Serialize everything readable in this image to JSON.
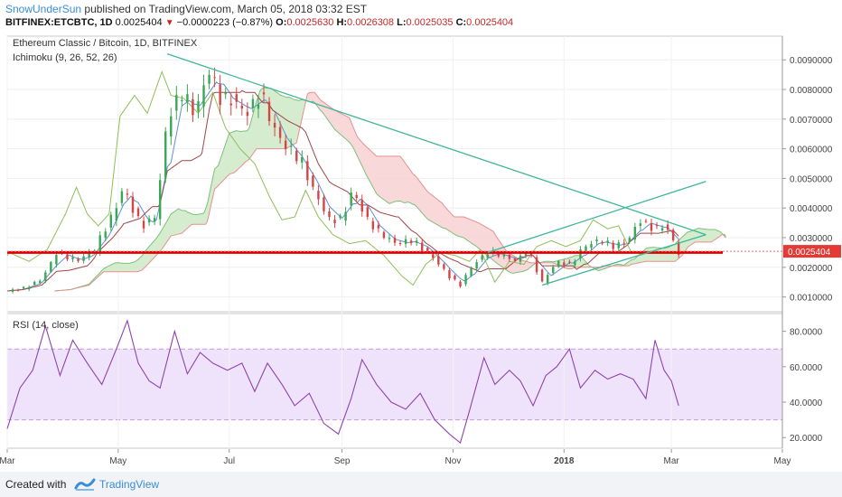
{
  "header": {
    "author": "SnowUnderSun",
    "published_text": "published on TradingView.com, March 05, 2018 03:32 EST",
    "symbol": "BITFINEX:ETCBTC, 1D",
    "last": "0.0025404",
    "change": "−0.0000223 (−0.87%)",
    "ohlc": {
      "o_label": "O:",
      "o": "0.0025630",
      "h_label": "H:",
      "h": "0.0026308",
      "l_label": "L:",
      "l": "0.0025035",
      "c_label": "C:",
      "c": "0.0025404"
    }
  },
  "chart_title": "Ethereum Classic / Bitcoin, 1D, BITFINEX",
  "ichimoku_label": "Ichimoku (9, 26, 52, 26)",
  "rsi_label": "RSI (14, close)",
  "footer": {
    "created_with": "Created with",
    "brand": "TradingView"
  },
  "colors": {
    "up": "#3aa757",
    "down": "#d64545",
    "support": "#e00000",
    "trendline": "#3fb59a",
    "rsi": "#8e44ad",
    "rsi_band": "#efe3fb",
    "cloud_bull": "#cfe9c7",
    "cloud_bear": "#f7d1d1",
    "price_label_bg": "#e53935"
  },
  "chart_data": [
    {
      "type": "candlestick",
      "title": "Ethereum Classic / Bitcoin, 1D, BITFINEX",
      "indicator": "Ichimoku (9, 26, 52, 26)",
      "ylim": [
        0.0005,
        0.0098
      ],
      "y_ticks": [
        "0.0010000",
        "0.0020000",
        "0.0030000",
        "0.0040000",
        "0.0050000",
        "0.0060000",
        "0.0070000",
        "0.0080000",
        "0.0090000"
      ],
      "x_ticks": [
        "Mar",
        "May",
        "Jul",
        "Sep",
        "Nov",
        "2018",
        "Mar",
        "May"
      ],
      "current_price": "0.0025404",
      "support_level": 0.0025,
      "close_path": [
        [
          "2017-03-01",
          0.0012
        ],
        [
          "2017-03-10",
          0.0013
        ],
        [
          "2017-03-20",
          0.0016
        ],
        [
          "2017-03-28",
          0.0025
        ],
        [
          "2017-04-08",
          0.0022
        ],
        [
          "2017-04-18",
          0.0026
        ],
        [
          "2017-04-28",
          0.0038
        ],
        [
          "2017-05-04",
          0.0047
        ],
        [
          "2017-05-10",
          0.0038
        ],
        [
          "2017-05-16",
          0.0034
        ],
        [
          "2017-05-22",
          0.0038
        ],
        [
          "2017-05-28",
          0.0071
        ],
        [
          "2017-06-05",
          0.0078
        ],
        [
          "2017-06-12",
          0.0072
        ],
        [
          "2017-06-20",
          0.0086
        ],
        [
          "2017-06-25",
          0.0078
        ],
        [
          "2017-07-02",
          0.0077
        ],
        [
          "2017-07-10",
          0.0072
        ],
        [
          "2017-07-18",
          0.0079
        ],
        [
          "2017-07-25",
          0.0067
        ],
        [
          "2017-08-02",
          0.006
        ],
        [
          "2017-08-10",
          0.0055
        ],
        [
          "2017-08-18",
          0.0044
        ],
        [
          "2017-08-25",
          0.0036
        ],
        [
          "2017-09-01",
          0.0037
        ],
        [
          "2017-09-07",
          0.0046
        ],
        [
          "2017-09-14",
          0.0037
        ],
        [
          "2017-09-22",
          0.0031
        ],
        [
          "2017-10-01",
          0.0028
        ],
        [
          "2017-10-10",
          0.0029
        ],
        [
          "2017-10-20",
          0.0024
        ],
        [
          "2017-10-30",
          0.0017
        ],
        [
          "2017-11-05",
          0.0014
        ],
        [
          "2017-11-12",
          0.0021
        ],
        [
          "2017-11-20",
          0.0025
        ],
        [
          "2017-11-28",
          0.0024
        ],
        [
          "2017-12-06",
          0.0022
        ],
        [
          "2017-12-12",
          0.0026
        ],
        [
          "2017-12-20",
          0.0015
        ],
        [
          "2017-12-28",
          0.0022
        ],
        [
          "2018-01-05",
          0.0021
        ],
        [
          "2018-01-12",
          0.0027
        ],
        [
          "2018-01-20",
          0.0029
        ],
        [
          "2018-01-28",
          0.0027
        ],
        [
          "2018-02-05",
          0.0029
        ],
        [
          "2018-02-12",
          0.0036
        ],
        [
          "2018-02-20",
          0.0033
        ],
        [
          "2018-02-26",
          0.0034
        ],
        [
          "2018-03-05",
          0.0025
        ]
      ],
      "descending_trendline": [
        [
          "2017-05-28",
          0.0092
        ],
        [
          "2018-03-20",
          0.0031
        ]
      ],
      "rising_channel_lower": [
        [
          "2017-12-20",
          0.0014
        ],
        [
          "2018-03-20",
          0.0031
        ]
      ],
      "rising_channel_upper": [
        [
          "2017-11-20",
          0.0025
        ],
        [
          "2018-03-20",
          0.0049
        ]
      ]
    },
    {
      "type": "line",
      "title": "RSI (14, close)",
      "ylim": [
        14,
        90
      ],
      "y_ticks": [
        "20.0000",
        "40.0000",
        "60.0000",
        "80.0000"
      ],
      "band": [
        30,
        70
      ],
      "series": [
        {
          "name": "RSI (14, close)",
          "values": [
            [
              "2017-03-01",
              25
            ],
            [
              "2017-03-08",
              48
            ],
            [
              "2017-03-15",
              58
            ],
            [
              "2017-03-22",
              83
            ],
            [
              "2017-03-30",
              55
            ],
            [
              "2017-04-06",
              75
            ],
            [
              "2017-04-14",
              62
            ],
            [
              "2017-04-22",
              50
            ],
            [
              "2017-04-30",
              70
            ],
            [
              "2017-05-06",
              86
            ],
            [
              "2017-05-12",
              62
            ],
            [
              "2017-05-18",
              52
            ],
            [
              "2017-05-24",
              48
            ],
            [
              "2017-06-01",
              80
            ],
            [
              "2017-06-08",
              56
            ],
            [
              "2017-06-15",
              68
            ],
            [
              "2017-06-22",
              62
            ],
            [
              "2017-06-30",
              58
            ],
            [
              "2017-07-08",
              62
            ],
            [
              "2017-07-15",
              46
            ],
            [
              "2017-07-22",
              62
            ],
            [
              "2017-07-30",
              50
            ],
            [
              "2017-08-06",
              38
            ],
            [
              "2017-08-14",
              45
            ],
            [
              "2017-08-22",
              28
            ],
            [
              "2017-08-30",
              22
            ],
            [
              "2017-09-06",
              42
            ],
            [
              "2017-09-12",
              64
            ],
            [
              "2017-09-20",
              50
            ],
            [
              "2017-09-28",
              40
            ],
            [
              "2017-10-06",
              36
            ],
            [
              "2017-10-14",
              45
            ],
            [
              "2017-10-22",
              30
            ],
            [
              "2017-10-30",
              22
            ],
            [
              "2017-11-05",
              17
            ],
            [
              "2017-11-10",
              35
            ],
            [
              "2017-11-18",
              65
            ],
            [
              "2017-11-24",
              50
            ],
            [
              "2017-12-02",
              58
            ],
            [
              "2017-12-08",
              52
            ],
            [
              "2017-12-15",
              38
            ],
            [
              "2017-12-22",
              55
            ],
            [
              "2017-12-28",
              60
            ],
            [
              "2018-01-04",
              70
            ],
            [
              "2018-01-10",
              48
            ],
            [
              "2018-01-18",
              58
            ],
            [
              "2018-01-25",
              53
            ],
            [
              "2018-02-01",
              56
            ],
            [
              "2018-02-08",
              53
            ],
            [
              "2018-02-15",
              42
            ],
            [
              "2018-02-20",
              75
            ],
            [
              "2018-02-25",
              58
            ],
            [
              "2018-03-01",
              52
            ],
            [
              "2018-03-05",
              38
            ]
          ]
        }
      ]
    }
  ]
}
